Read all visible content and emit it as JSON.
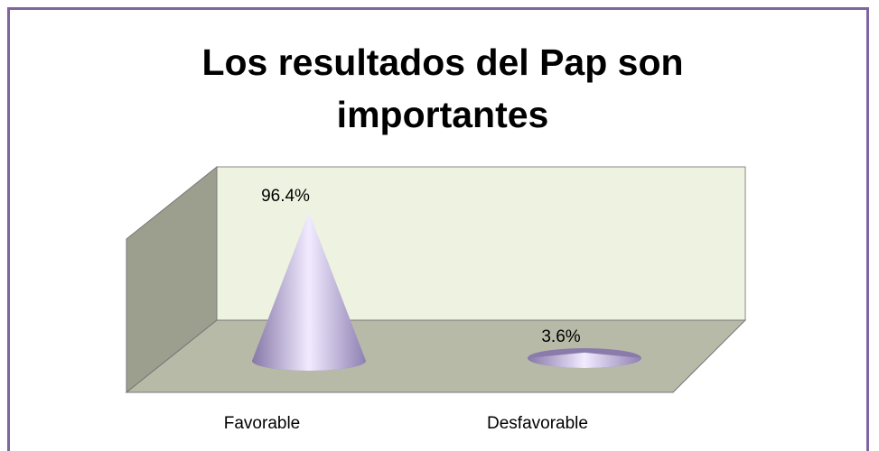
{
  "chart_data": {
    "type": "cone",
    "title": "Los resultados del Pap son importantes",
    "categories": [
      "Favorable",
      "Desfavorable"
    ],
    "values": [
      96.4,
      3.6
    ],
    "value_labels": [
      "96.4%",
      "3.6%"
    ],
    "color": "#a99cc9"
  }
}
